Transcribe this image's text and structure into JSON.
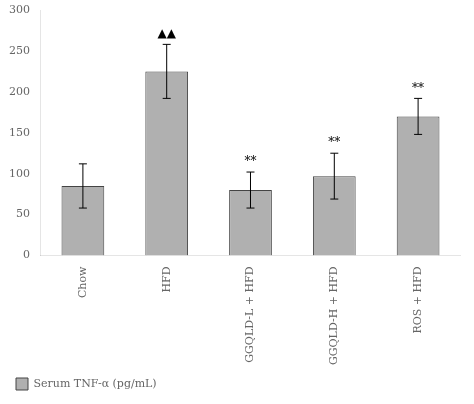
{
  "chart_data": {
    "type": "bar",
    "categories": [
      "Chow",
      "HFD",
      "GGQLD-L + HFD",
      "GGQLD-H + HFD",
      "ROS + HFD"
    ],
    "series": [
      {
        "name": "Serum TNF-α (pg/mL)",
        "color": "#b0b0b0",
        "values": [
          85,
          225,
          80,
          97,
          170
        ],
        "errors": [
          27,
          33,
          22,
          28,
          22
        ]
      }
    ],
    "annotations": [
      {
        "category": "HFD",
        "text": "▲▲"
      },
      {
        "category": "GGQLD-L + HFD",
        "text": "**"
      },
      {
        "category": "GGQLD-H + HFD",
        "text": "**"
      },
      {
        "category": "ROS + HFD",
        "text": "**"
      }
    ],
    "ylim": [
      0,
      300
    ],
    "yticks": [
      0,
      50,
      100,
      150,
      200,
      250,
      300
    ],
    "grid": false,
    "legend": "bottom"
  }
}
